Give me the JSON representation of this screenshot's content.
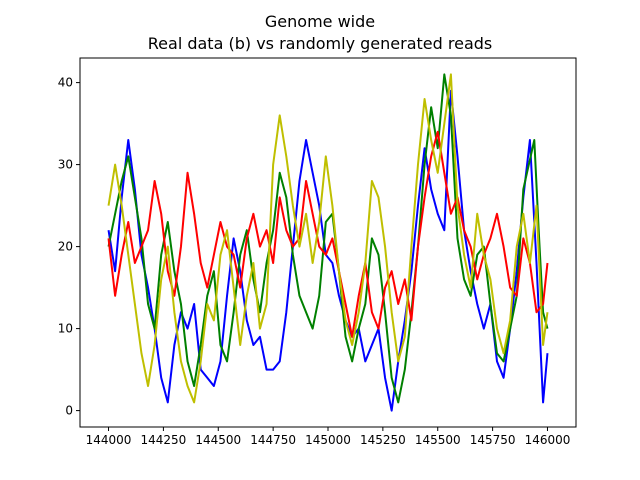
{
  "chart_data": {
    "type": "line",
    "title": "Genome wide",
    "subtitle": "Real data (b) vs randomly generated reads",
    "xlabel": "",
    "ylabel": "",
    "xlim": [
      143870,
      146130
    ],
    "ylim": [
      -2,
      43
    ],
    "xticks": [
      144000,
      144250,
      144500,
      144750,
      145000,
      145250,
      145500,
      145750,
      146000
    ],
    "yticks": [
      0,
      10,
      20,
      30,
      40
    ],
    "grid": false,
    "series": [
      {
        "color": "#0000ff",
        "x": [
          144000,
          144030,
          144060,
          144090,
          144120,
          144150,
          144180,
          144210,
          144240,
          144270,
          144300,
          144330,
          144360,
          144390,
          144420,
          144450,
          144480,
          144510,
          144540,
          144570,
          144600,
          144630,
          144660,
          144690,
          144720,
          144750,
          144780,
          144810,
          144840,
          144870,
          144900,
          144930,
          144960,
          144990,
          145020,
          145050,
          145080,
          145110,
          145140,
          145170,
          145200,
          145230,
          145260,
          145290,
          145320,
          145350,
          145380,
          145410,
          145440,
          145470,
          145500,
          145530,
          145560,
          145590,
          145620,
          145650,
          145680,
          145710,
          145740,
          145770,
          145800,
          145830,
          145860,
          145890,
          145920,
          145950,
          145980,
          146000
        ],
        "y": [
          22,
          17,
          26,
          33,
          27,
          19,
          15,
          10,
          4,
          1,
          8,
          12,
          10,
          13,
          5,
          4,
          3,
          6,
          14,
          21,
          17,
          11,
          8,
          9,
          5,
          5,
          6,
          12,
          20,
          28,
          33,
          29,
          25,
          19,
          18,
          14,
          11,
          9,
          10,
          6,
          8,
          10,
          4,
          0,
          6,
          11,
          17,
          25,
          32,
          27,
          24,
          22,
          39,
          31,
          22,
          17,
          13,
          10,
          13,
          6,
          4,
          10,
          17,
          26,
          33,
          18,
          1,
          7
        ]
      },
      {
        "color": "#008000",
        "x": [
          144000,
          144030,
          144060,
          144090,
          144120,
          144150,
          144180,
          144210,
          144240,
          144270,
          144300,
          144330,
          144360,
          144390,
          144420,
          144450,
          144480,
          144510,
          144540,
          144570,
          144600,
          144630,
          144660,
          144690,
          144720,
          144750,
          144780,
          144810,
          144840,
          144870,
          144900,
          144930,
          144960,
          144990,
          145020,
          145050,
          145080,
          145110,
          145140,
          145170,
          145200,
          145230,
          145260,
          145290,
          145320,
          145350,
          145380,
          145410,
          145440,
          145470,
          145500,
          145530,
          145560,
          145590,
          145620,
          145650,
          145680,
          145710,
          145740,
          145770,
          145800,
          145830,
          145860,
          145890,
          145940,
          145960,
          145980,
          146000
        ],
        "y": [
          20,
          24,
          28,
          31,
          26,
          21,
          13,
          10,
          19,
          23,
          17,
          13,
          6,
          3,
          8,
          14,
          17,
          8,
          6,
          12,
          19,
          22,
          16,
          12,
          18,
          22,
          29,
          26,
          19,
          14,
          12,
          10,
          14,
          23,
          24,
          17,
          9,
          6,
          10,
          13,
          21,
          19,
          12,
          4,
          1,
          5,
          12,
          20,
          30,
          37,
          32,
          41,
          36,
          21,
          16,
          14,
          19,
          20,
          13,
          7,
          6,
          10,
          14,
          27,
          33,
          22,
          12,
          10
        ]
      },
      {
        "color": "#ff0000",
        "x": [
          144000,
          144030,
          144060,
          144090,
          144120,
          144150,
          144180,
          144210,
          144240,
          144270,
          144300,
          144330,
          144360,
          144390,
          144420,
          144450,
          144480,
          144510,
          144540,
          144570,
          144600,
          144630,
          144660,
          144690,
          144720,
          144750,
          144780,
          144810,
          144840,
          144870,
          144900,
          144930,
          144960,
          144990,
          145020,
          145050,
          145080,
          145110,
          145140,
          145170,
          145200,
          145230,
          145260,
          145290,
          145320,
          145350,
          145380,
          145410,
          145440,
          145470,
          145500,
          145530,
          145560,
          145590,
          145620,
          145650,
          145680,
          145710,
          145740,
          145770,
          145800,
          145830,
          145860,
          145890,
          145920,
          145950,
          145980,
          146000
        ],
        "y": [
          21,
          14,
          19,
          23,
          18,
          20,
          22,
          28,
          24,
          17,
          14,
          20,
          29,
          24,
          18,
          15,
          19,
          23,
          20,
          19,
          15,
          21,
          24,
          20,
          22,
          18,
          26,
          22,
          20,
          21,
          28,
          24,
          20,
          19,
          21,
          17,
          13,
          9,
          14,
          18,
          12,
          10,
          15,
          17,
          13,
          16,
          11,
          20,
          26,
          31,
          34,
          29,
          24,
          26,
          22,
          20,
          16,
          19,
          21,
          24,
          20,
          15,
          14,
          21,
          18,
          12,
          13,
          18
        ]
      },
      {
        "color": "#bfbf00",
        "x": [
          144000,
          144030,
          144060,
          144090,
          144120,
          144150,
          144180,
          144210,
          144240,
          144270,
          144300,
          144330,
          144360,
          144390,
          144420,
          144450,
          144480,
          144510,
          144540,
          144570,
          144600,
          144630,
          144660,
          144690,
          144720,
          144750,
          144780,
          144810,
          144840,
          144870,
          144900,
          144930,
          144960,
          144990,
          145020,
          145050,
          145080,
          145110,
          145140,
          145170,
          145200,
          145230,
          145260,
          145290,
          145320,
          145350,
          145380,
          145410,
          145440,
          145470,
          145500,
          145530,
          145560,
          145590,
          145620,
          145650,
          145680,
          145710,
          145740,
          145770,
          145800,
          145830,
          145860,
          145890,
          145920,
          145950,
          145980,
          146000
        ],
        "y": [
          25,
          30,
          25,
          19,
          13,
          7,
          3,
          8,
          16,
          20,
          12,
          6,
          3,
          1,
          6,
          13,
          11,
          19,
          22,
          15,
          8,
          14,
          18,
          10,
          13,
          30,
          36,
          31,
          25,
          20,
          24,
          18,
          23,
          31,
          25,
          17,
          11,
          8,
          12,
          18,
          28,
          26,
          20,
          12,
          6,
          9,
          20,
          30,
          38,
          33,
          29,
          35,
          41,
          25,
          19,
          15,
          24,
          19,
          16,
          10,
          7,
          11,
          20,
          24,
          18,
          25,
          8,
          12
        ]
      }
    ]
  }
}
